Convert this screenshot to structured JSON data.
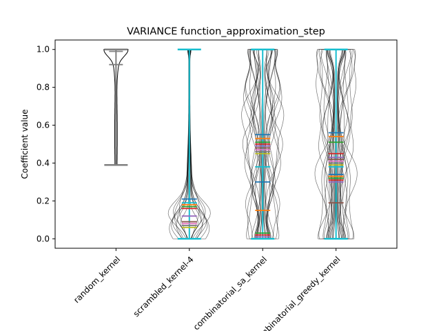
{
  "chart_data": {
    "type": "violin",
    "title": "VARIANCE function_approximation_step",
    "xlabel": "",
    "ylabel": "Coefficient value",
    "ylim": [
      -0.05,
      1.05
    ],
    "yticks": [
      "0.0",
      "0.2",
      "0.4",
      "0.6",
      "0.8",
      "1.0"
    ],
    "categories": [
      "random_kernel",
      "scrambled_kernel-4",
      "combinatorial_sa_kernel",
      "combinatorial_greedy_kernel"
    ],
    "colors": [
      "#1f77b4",
      "#ff7f0e",
      "#2ca02c",
      "#d62728",
      "#9467bd",
      "#8c564b",
      "#e377c2",
      "#7f7f7f",
      "#bcbd22",
      "#17becf"
    ],
    "groups": [
      {
        "category": "random_kernel",
        "min": 0.39,
        "max": 1.0,
        "means": [
          0.92
        ],
        "medians": [
          0.99
        ],
        "extrema_color": "#7f7f7f",
        "shape": "top-heavy"
      },
      {
        "category": "scrambled_kernel-4",
        "min": 0.0,
        "max": 1.0,
        "means": [
          0.21,
          0.18,
          0.17,
          0.16,
          0.12,
          0.09,
          0.08,
          0.07,
          0.06,
          0.19
        ],
        "shape": "bottom-heavy"
      },
      {
        "category": "combinatorial_sa_kernel",
        "min": 0.0,
        "max": 1.0,
        "means": [
          0.55,
          0.53,
          0.51,
          0.5,
          0.49,
          0.48,
          0.47,
          0.46,
          0.45,
          0.38,
          0.3,
          0.15,
          0.03,
          0.02,
          0.01
        ],
        "shape": "spread"
      },
      {
        "category": "combinatorial_greedy_kernel",
        "min": 0.0,
        "max": 1.0,
        "means": [
          0.56,
          0.54,
          0.51,
          0.45,
          0.43,
          0.42,
          0.41,
          0.4,
          0.39,
          0.38,
          0.34,
          0.33,
          0.32,
          0.31,
          0.3,
          0.19
        ],
        "shape": "spread"
      }
    ],
    "grid": false,
    "legend": "none"
  }
}
